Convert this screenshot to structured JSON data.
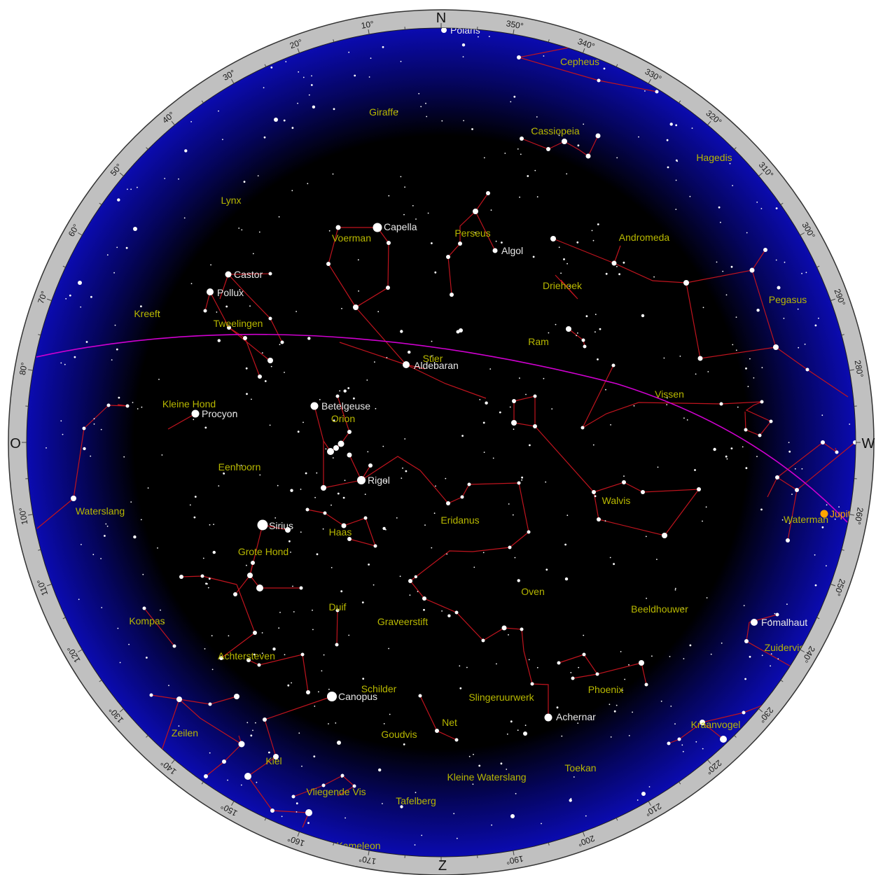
{
  "map": {
    "cardinals": [
      {
        "label": "N",
        "azimuth": 0
      },
      {
        "label": "W",
        "azimuth": 270
      },
      {
        "label": "Z",
        "azimuth": 180
      },
      {
        "label": "O",
        "azimuth": 90
      }
    ],
    "degree_labels": [
      "10°",
      "20°",
      "30°",
      "40°",
      "50°",
      "60°",
      "70°",
      "80°",
      "100°",
      "110°",
      "120°",
      "130°",
      "140°",
      "150°",
      "160°",
      "170°",
      "190°",
      "200°",
      "210°",
      "220°",
      "230°",
      "240°",
      "250°",
      "260°",
      "280°",
      "290°",
      "300°",
      "310°",
      "320°",
      "330°",
      "340°",
      "350°"
    ],
    "colors": {
      "ring": "#c0c0c0",
      "horizon_glow": "#0a0aa8",
      "sky": "#000000",
      "stars": "#ffffff",
      "constellation_lines": "#c0141e",
      "constellation_names": "#b8b800",
      "ecliptic": "#d000d0",
      "planet": "#ffa500"
    },
    "constellations": [
      "Giraffe",
      "Cepheus",
      "Cassiopeia",
      "Hagedis",
      "Lynx",
      "Perseus",
      "Voerman",
      "Andromeda",
      "Driehoek",
      "Pegasus",
      "Kreeft",
      "Tweelingen",
      "Ram",
      "Stier",
      "Vissen",
      "Kleine Hond",
      "Orion",
      "Eenhoorn",
      "Walvis",
      "Waterslang",
      "Eridanus",
      "Waterman",
      "Haas",
      "Grote Hond",
      "Oven",
      "Kompas",
      "Duif",
      "Graveerstift",
      "Beeldhouwer",
      "Zuidervis",
      "Achtersteven",
      "Schilder",
      "Phoenix",
      "Slingeruurwerk",
      "Net",
      "Kraanvogel",
      "Zeilen",
      "Goudvis",
      "Kiel",
      "Kleine Waterslang",
      "Toekan",
      "Vliegende Vis",
      "Tafelberg",
      "Kameleon"
    ],
    "named_stars": [
      "Polaris",
      "Capella",
      "Algol",
      "Castor",
      "Pollux",
      "Aldebaran",
      "Betelgeuse",
      "Procyon",
      "Rigel",
      "Sirius",
      "Canopus",
      "Achernar",
      "Fomalhaut"
    ],
    "planets": [
      "Jupiter"
    ]
  }
}
